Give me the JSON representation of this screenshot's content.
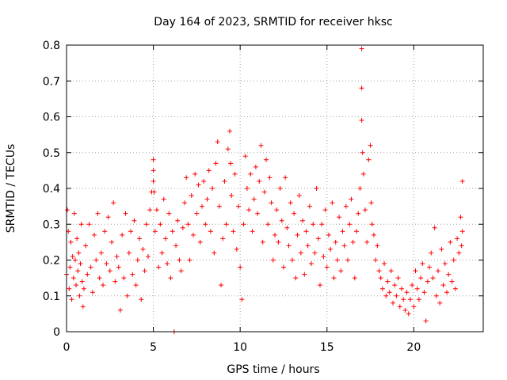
{
  "chart_data": {
    "type": "scatter",
    "title": "Day 164 of 2023, SRMTID for receiver hksc",
    "xlabel": "GPS time / hours",
    "ylabel": "SRMTID / TECUs",
    "xlim": [
      0,
      24
    ],
    "ylim": [
      0,
      0.8
    ],
    "xticks": [
      0,
      5,
      10,
      15,
      20
    ],
    "yticks": [
      0,
      0.1,
      0.2,
      0.3,
      0.4,
      0.5,
      0.6,
      0.7,
      0.8
    ],
    "xtick_labels": [
      "0",
      "5",
      "10",
      "15",
      "20"
    ],
    "ytick_labels": [
      "0",
      "0.1",
      "0.2",
      "0.3",
      "0.4",
      "0.5",
      "0.6",
      "0.7",
      "0.8"
    ],
    "grid": true,
    "marker": "+",
    "color": "#ff0000",
    "series": [
      {
        "name": "SRMTID",
        "points": [
          [
            0.0,
            0.16
          ],
          [
            0.05,
            0.34
          ],
          [
            0.1,
            0.28
          ],
          [
            0.15,
            0.12
          ],
          [
            0.2,
            0.18
          ],
          [
            0.25,
            0.25
          ],
          [
            0.3,
            0.09
          ],
          [
            0.35,
            0.21
          ],
          [
            0.4,
            0.15
          ],
          [
            0.45,
            0.33
          ],
          [
            0.5,
            0.2
          ],
          [
            0.55,
            0.13
          ],
          [
            0.6,
            0.26
          ],
          [
            0.65,
            0.17
          ],
          [
            0.7,
            0.22
          ],
          [
            0.75,
            0.1
          ],
          [
            0.8,
            0.19
          ],
          [
            0.85,
            0.3
          ],
          [
            0.9,
            0.14
          ],
          [
            0.95,
            0.07
          ],
          [
            1.0,
            0.12
          ],
          [
            1.1,
            0.24
          ],
          [
            1.2,
            0.16
          ],
          [
            1.3,
            0.3
          ],
          [
            1.4,
            0.18
          ],
          [
            1.5,
            0.11
          ],
          [
            1.6,
            0.27
          ],
          [
            1.7,
            0.2
          ],
          [
            1.8,
            0.33
          ],
          [
            1.9,
            0.15
          ],
          [
            2.0,
            0.22
          ],
          [
            2.1,
            0.13
          ],
          [
            2.2,
            0.28
          ],
          [
            2.3,
            0.19
          ],
          [
            2.4,
            0.32
          ],
          [
            2.5,
            0.17
          ],
          [
            2.6,
            0.25
          ],
          [
            2.7,
            0.36
          ],
          [
            2.8,
            0.14
          ],
          [
            2.9,
            0.21
          ],
          [
            3.0,
            0.18
          ],
          [
            3.1,
            0.06
          ],
          [
            3.2,
            0.27
          ],
          [
            3.3,
            0.15
          ],
          [
            3.4,
            0.33
          ],
          [
            3.5,
            0.1
          ],
          [
            3.6,
            0.22
          ],
          [
            3.7,
            0.28
          ],
          [
            3.8,
            0.16
          ],
          [
            3.9,
            0.31
          ],
          [
            4.0,
            0.13
          ],
          [
            4.1,
            0.2
          ],
          [
            4.2,
            0.26
          ],
          [
            4.3,
            0.09
          ],
          [
            4.4,
            0.23
          ],
          [
            4.5,
            0.17
          ],
          [
            4.6,
            0.3
          ],
          [
            4.7,
            0.21
          ],
          [
            4.8,
            0.34
          ],
          [
            4.9,
            0.39
          ],
          [
            5.0,
            0.45
          ],
          [
            5.0,
            0.48
          ],
          [
            5.0,
            0.42
          ],
          [
            5.05,
            0.39
          ],
          [
            5.1,
            0.28
          ],
          [
            5.2,
            0.34
          ],
          [
            5.3,
            0.18
          ],
          [
            5.4,
            0.3
          ],
          [
            5.5,
            0.22
          ],
          [
            5.6,
            0.37
          ],
          [
            5.7,
            0.26
          ],
          [
            5.8,
            0.19
          ],
          [
            5.9,
            0.33
          ],
          [
            6.0,
            0.15
          ],
          [
            6.1,
            0.28
          ],
          [
            6.2,
            0.0
          ],
          [
            6.3,
            0.24
          ],
          [
            6.4,
            0.31
          ],
          [
            6.5,
            0.2
          ],
          [
            6.6,
            0.17
          ],
          [
            6.7,
            0.29
          ],
          [
            6.8,
            0.36
          ],
          [
            6.9,
            0.43
          ],
          [
            7.0,
            0.3
          ],
          [
            7.1,
            0.2
          ],
          [
            7.2,
            0.38
          ],
          [
            7.3,
            0.27
          ],
          [
            7.4,
            0.44
          ],
          [
            7.5,
            0.33
          ],
          [
            7.6,
            0.41
          ],
          [
            7.7,
            0.25
          ],
          [
            7.8,
            0.35
          ],
          [
            7.9,
            0.42
          ],
          [
            8.0,
            0.3
          ],
          [
            8.1,
            0.37
          ],
          [
            8.2,
            0.45
          ],
          [
            8.3,
            0.28
          ],
          [
            8.4,
            0.4
          ],
          [
            8.5,
            0.22
          ],
          [
            8.6,
            0.47
          ],
          [
            8.7,
            0.53
          ],
          [
            8.8,
            0.35
          ],
          [
            8.9,
            0.13
          ],
          [
            9.0,
            0.26
          ],
          [
            9.1,
            0.42
          ],
          [
            9.2,
            0.3
          ],
          [
            9.3,
            0.51
          ],
          [
            9.4,
            0.56
          ],
          [
            9.45,
            0.47
          ],
          [
            9.5,
            0.38
          ],
          [
            9.6,
            0.28
          ],
          [
            9.7,
            0.44
          ],
          [
            9.8,
            0.23
          ],
          [
            9.9,
            0.35
          ],
          [
            10.0,
            0.18
          ],
          [
            10.1,
            0.09
          ],
          [
            10.2,
            0.3
          ],
          [
            10.3,
            0.49
          ],
          [
            10.4,
            0.4
          ],
          [
            10.5,
            0.34
          ],
          [
            10.6,
            0.44
          ],
          [
            10.7,
            0.28
          ],
          [
            10.8,
            0.37
          ],
          [
            10.9,
            0.46
          ],
          [
            11.0,
            0.33
          ],
          [
            11.1,
            0.42
          ],
          [
            11.2,
            0.52
          ],
          [
            11.3,
            0.25
          ],
          [
            11.4,
            0.39
          ],
          [
            11.5,
            0.48
          ],
          [
            11.6,
            0.3
          ],
          [
            11.7,
            0.43
          ],
          [
            11.8,
            0.36
          ],
          [
            11.9,
            0.2
          ],
          [
            12.0,
            0.27
          ],
          [
            12.1,
            0.34
          ],
          [
            12.2,
            0.25
          ],
          [
            12.3,
            0.4
          ],
          [
            12.4,
            0.31
          ],
          [
            12.5,
            0.18
          ],
          [
            12.6,
            0.43
          ],
          [
            12.7,
            0.29
          ],
          [
            12.8,
            0.24
          ],
          [
            12.9,
            0.36
          ],
          [
            13.0,
            0.2
          ],
          [
            13.1,
            0.33
          ],
          [
            13.2,
            0.15
          ],
          [
            13.3,
            0.27
          ],
          [
            13.4,
            0.38
          ],
          [
            13.5,
            0.22
          ],
          [
            13.6,
            0.31
          ],
          [
            13.7,
            0.16
          ],
          [
            13.8,
            0.28
          ],
          [
            13.9,
            0.24
          ],
          [
            14.0,
            0.35
          ],
          [
            14.1,
            0.19
          ],
          [
            14.2,
            0.3
          ],
          [
            14.3,
            0.22
          ],
          [
            14.4,
            0.4
          ],
          [
            14.5,
            0.26
          ],
          [
            14.6,
            0.13
          ],
          [
            14.7,
            0.3
          ],
          [
            14.8,
            0.21
          ],
          [
            14.9,
            0.34
          ],
          [
            15.0,
            0.18
          ],
          [
            15.1,
            0.27
          ],
          [
            15.2,
            0.23
          ],
          [
            15.3,
            0.36
          ],
          [
            15.4,
            0.15
          ],
          [
            15.5,
            0.25
          ],
          [
            15.6,
            0.2
          ],
          [
            15.7,
            0.32
          ],
          [
            15.8,
            0.17
          ],
          [
            15.9,
            0.28
          ],
          [
            16.0,
            0.24
          ],
          [
            16.1,
            0.35
          ],
          [
            16.2,
            0.2
          ],
          [
            16.3,
            0.3
          ],
          [
            16.4,
            0.37
          ],
          [
            16.5,
            0.25
          ],
          [
            16.6,
            0.15
          ],
          [
            16.7,
            0.28
          ],
          [
            16.8,
            0.33
          ],
          [
            16.9,
            0.4
          ],
          [
            17.0,
            0.79
          ],
          [
            17.0,
            0.68
          ],
          [
            17.0,
            0.59
          ],
          [
            17.05,
            0.5
          ],
          [
            17.1,
            0.44
          ],
          [
            17.2,
            0.34
          ],
          [
            17.3,
            0.25
          ],
          [
            17.4,
            0.48
          ],
          [
            17.5,
            0.52
          ],
          [
            17.55,
            0.36
          ],
          [
            17.6,
            0.3
          ],
          [
            17.7,
            0.27
          ],
          [
            17.8,
            0.2
          ],
          [
            17.9,
            0.24
          ],
          [
            18.0,
            0.17
          ],
          [
            18.1,
            0.15
          ],
          [
            18.2,
            0.12
          ],
          [
            18.3,
            0.19
          ],
          [
            18.4,
            0.1
          ],
          [
            18.5,
            0.14
          ],
          [
            18.6,
            0.11
          ],
          [
            18.7,
            0.17
          ],
          [
            18.8,
            0.08
          ],
          [
            18.9,
            0.13
          ],
          [
            19.0,
            0.1
          ],
          [
            19.1,
            0.15
          ],
          [
            19.2,
            0.07
          ],
          [
            19.3,
            0.12
          ],
          [
            19.4,
            0.09
          ],
          [
            19.5,
            0.06
          ],
          [
            19.6,
            0.11
          ],
          [
            19.7,
            0.05
          ],
          [
            19.8,
            0.09
          ],
          [
            19.9,
            0.13
          ],
          [
            20.0,
            0.07
          ],
          [
            20.1,
            0.17
          ],
          [
            20.2,
            0.12
          ],
          [
            20.3,
            0.09
          ],
          [
            20.4,
            0.15
          ],
          [
            20.5,
            0.19
          ],
          [
            20.6,
            0.11
          ],
          [
            20.7,
            0.03
          ],
          [
            20.8,
            0.14
          ],
          [
            20.9,
            0.18
          ],
          [
            21.0,
            0.22
          ],
          [
            21.1,
            0.15
          ],
          [
            21.2,
            0.29
          ],
          [
            21.3,
            0.1
          ],
          [
            21.4,
            0.17
          ],
          [
            21.5,
            0.08
          ],
          [
            21.6,
            0.23
          ],
          [
            21.7,
            0.13
          ],
          [
            21.8,
            0.19
          ],
          [
            21.9,
            0.11
          ],
          [
            22.0,
            0.16
          ],
          [
            22.1,
            0.25
          ],
          [
            22.2,
            0.14
          ],
          [
            22.3,
            0.2
          ],
          [
            22.4,
            0.12
          ],
          [
            22.5,
            0.26
          ],
          [
            22.6,
            0.22
          ],
          [
            22.7,
            0.32
          ],
          [
            22.8,
            0.42
          ],
          [
            22.8,
            0.28
          ],
          [
            22.75,
            0.24
          ]
        ]
      }
    ]
  }
}
